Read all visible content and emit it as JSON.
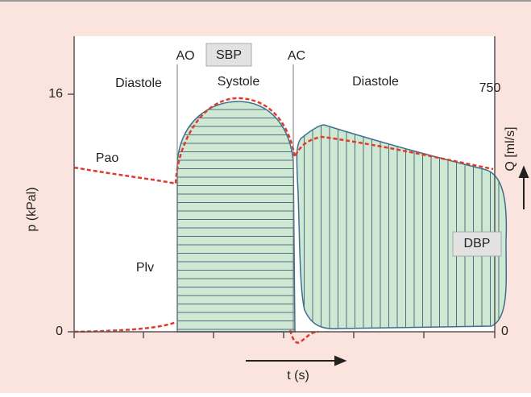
{
  "labels": {
    "ao": "AO",
    "sbp": "SBP",
    "ac": "AC",
    "diastole_left": "Diastole",
    "systole": "Systole",
    "diastole_right": "Diastole",
    "pao": "Pao",
    "plv": "Plv",
    "dbp": "DBP"
  },
  "axes": {
    "left_title": "p (kPal)",
    "left_top": "16",
    "left_bottom": "0",
    "right_title": "Q [ml/s]",
    "right_top": "750",
    "right_bottom": "0",
    "bottom_title": "t (s)"
  }
}
